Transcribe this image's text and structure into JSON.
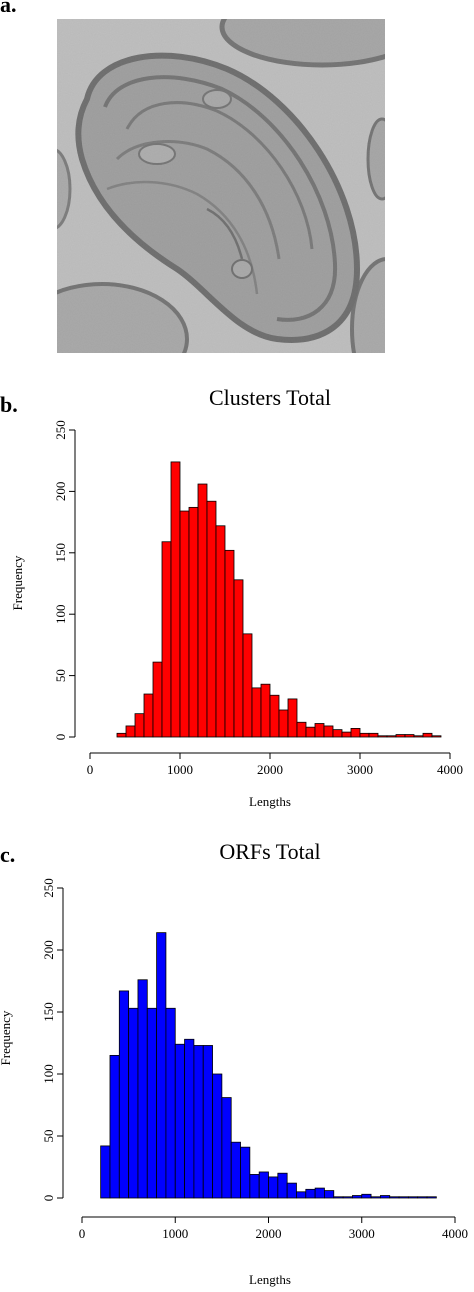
{
  "panels": {
    "a": {
      "label": "a."
    },
    "b": {
      "label": "b."
    },
    "c": {
      "label": "c."
    }
  },
  "chart_data": [
    {
      "type": "bar",
      "title": "Clusters Total",
      "xlabel": "Lengths",
      "ylabel": "Frequency",
      "color": "#ff0000",
      "bin_width": 100,
      "bin_starts": [
        300,
        400,
        500,
        600,
        700,
        800,
        900,
        1000,
        1100,
        1200,
        1300,
        1400,
        1500,
        1600,
        1700,
        1800,
        1900,
        2000,
        2100,
        2200,
        2300,
        2400,
        2500,
        2600,
        2700,
        2800,
        2900,
        3000,
        3100,
        3200,
        3300,
        3400,
        3500,
        3600,
        3700,
        3800
      ],
      "values": [
        3,
        9,
        19,
        35,
        61,
        159,
        224,
        184,
        187,
        206,
        192,
        172,
        152,
        128,
        84,
        40,
        43,
        34,
        22,
        31,
        12,
        8,
        11,
        9,
        6,
        4,
        7,
        3,
        3,
        1,
        1,
        2,
        2,
        1,
        3,
        1
      ],
      "xlim": [
        0,
        4000
      ],
      "ylim": [
        0,
        250
      ],
      "xticks": [
        "0",
        "1000",
        "2000",
        "3000",
        "4000"
      ],
      "yticks": [
        "0",
        "50",
        "100",
        "150",
        "200",
        "250"
      ]
    },
    {
      "type": "bar",
      "title": "ORFs Total",
      "xlabel": "Lengths",
      "ylabel": "Frequency",
      "color": "#0000ff",
      "bin_width": 100,
      "bin_starts": [
        200,
        300,
        400,
        500,
        600,
        700,
        800,
        900,
        1000,
        1100,
        1200,
        1300,
        1400,
        1500,
        1600,
        1700,
        1800,
        1900,
        2000,
        2100,
        2200,
        2300,
        2400,
        2500,
        2600,
        2700,
        2800,
        2900,
        3000,
        3100,
        3200,
        3300,
        3400,
        3500,
        3600,
        3700
      ],
      "values": [
        42,
        115,
        167,
        153,
        176,
        153,
        214,
        153,
        124,
        128,
        123,
        123,
        100,
        81,
        45,
        41,
        19,
        21,
        17,
        20,
        12,
        5,
        7,
        8,
        6,
        1,
        1,
        2,
        3,
        1,
        2,
        1,
        1,
        1,
        1,
        1
      ],
      "xlim": [
        0,
        4000
      ],
      "ylim": [
        0,
        250
      ],
      "xticks": [
        "0",
        "1000",
        "2000",
        "3000",
        "4000"
      ],
      "yticks": [
        "0",
        "50",
        "100",
        "150",
        "200",
        "250"
      ]
    }
  ]
}
